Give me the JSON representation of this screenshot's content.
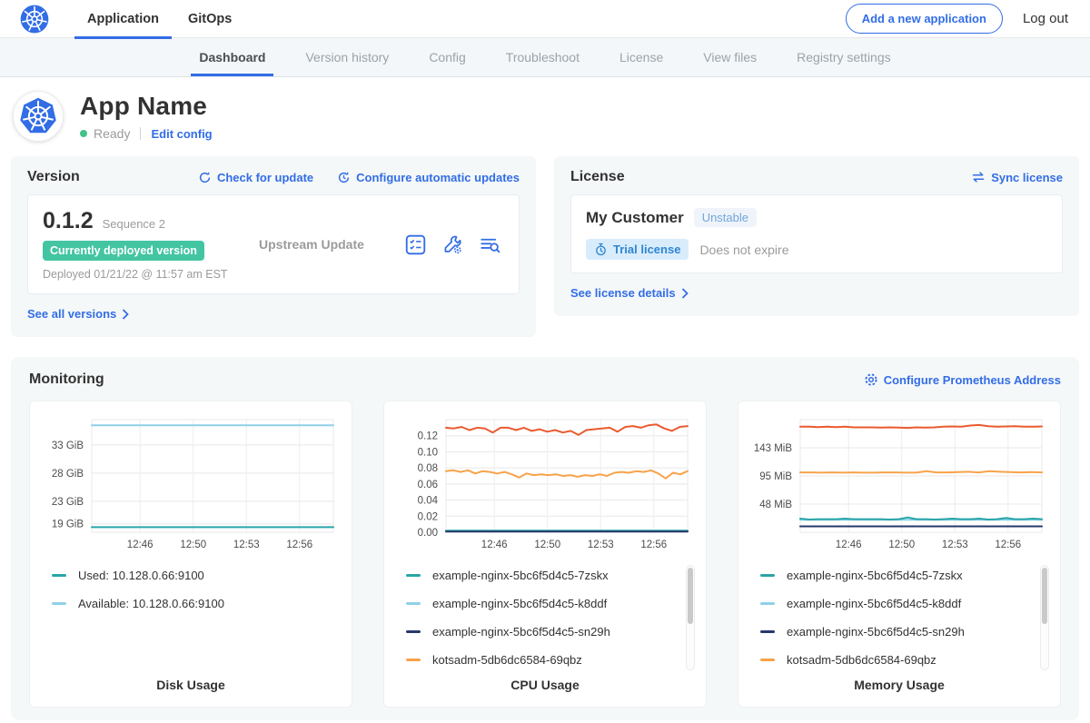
{
  "topnav": {
    "tabs": [
      {
        "label": "Application",
        "active": true
      },
      {
        "label": "GitOps",
        "active": false
      }
    ],
    "add_app_button": "Add a new application",
    "logout": "Log out"
  },
  "subnav": {
    "tabs": [
      {
        "label": "Dashboard",
        "active": true
      },
      {
        "label": "Version history",
        "active": false
      },
      {
        "label": "Config",
        "active": false
      },
      {
        "label": "Troubleshoot",
        "active": false
      },
      {
        "label": "License",
        "active": false
      },
      {
        "label": "View files",
        "active": false
      },
      {
        "label": "Registry settings",
        "active": false
      }
    ]
  },
  "app_header": {
    "name": "App Name",
    "status": "Ready",
    "edit_config": "Edit config"
  },
  "version_card": {
    "title": "Version",
    "check_for_update": "Check for update",
    "configure_auto_updates": "Configure automatic updates",
    "version": "0.1.2",
    "sequence": "Sequence 2",
    "deployed_badge": "Currently deployed version",
    "deployed_at": "Deployed 01/21/22 @ 11:57 am EST",
    "upstream": "Upstream Update",
    "see_all_versions": "See all versions"
  },
  "license_card": {
    "title": "License",
    "sync_license": "Sync license",
    "customer": "My Customer",
    "channel_badge": "Unstable",
    "type_badge": "Trial license",
    "expiry": "Does not expire",
    "see_details": "See license details"
  },
  "monitoring": {
    "title": "Monitoring",
    "configure_prometheus": "Configure Prometheus Address"
  },
  "icons": {
    "kubernetes-logo": "k8s-helm-wheel",
    "check-update-icon": "circular-arrow",
    "auto-update-icon": "clock-circular-arrow",
    "preflight-icon": "checklist",
    "config-icon": "wrench-gear",
    "logs-icon": "lines-magnifier",
    "chevron-right-icon": "›",
    "sync-icon": "swap-arrows",
    "stopwatch-icon": "stopwatch",
    "gear-icon": "gear",
    "status-dot": "●"
  },
  "colors": {
    "accent_blue": "#326de6",
    "green_badge": "#44c5a2",
    "status_green": "#44c08b",
    "teal_series": "#29a5a8",
    "lightblue_series": "#8fd0e8",
    "navy_series": "#27386b",
    "orange_series": "#f7a24a",
    "redorange_series": "#ea5b30"
  },
  "chart_data": [
    {
      "type": "line",
      "title": "Disk Usage",
      "x_ticks": [
        "12:46",
        "12:50",
        "12:53",
        "12:56"
      ],
      "x_tick_pos": [
        0.2,
        0.42,
        0.64,
        0.86
      ],
      "ylim": [
        17.5,
        37.5
      ],
      "y_ticks": [
        {
          "label": "33 GiB",
          "value": 33
        },
        {
          "label": "28 GiB",
          "value": 28
        },
        {
          "label": "23 GiB",
          "value": 23
        },
        {
          "label": "19 GiB",
          "value": 19
        }
      ],
      "legend": [
        {
          "label": "Used: 10.128.0.66:9100",
          "color": "#29a5a8"
        },
        {
          "label": "Available: 10.128.0.66:9100",
          "color": "#8fd0e8"
        }
      ],
      "series": [
        {
          "name": "Used: 10.128.0.66:9100",
          "color": "#29a5a8",
          "values": [
            18.4,
            18.4
          ]
        },
        {
          "name": "Available: 10.128.0.66:9100",
          "color": "#8fd0e8",
          "values": [
            36.5,
            36.5
          ]
        }
      ]
    },
    {
      "type": "line",
      "title": "CPU Usage",
      "x_ticks": [
        "12:46",
        "12:50",
        "12:53",
        "12:56"
      ],
      "x_tick_pos": [
        0.2,
        0.42,
        0.64,
        0.86
      ],
      "ylim": [
        0,
        0.14
      ],
      "y_ticks": [
        {
          "label": "0.12",
          "value": 0.12
        },
        {
          "label": "0.10",
          "value": 0.1
        },
        {
          "label": "0.08",
          "value": 0.08
        },
        {
          "label": "0.06",
          "value": 0.06
        },
        {
          "label": "0.04",
          "value": 0.04
        },
        {
          "label": "0.02",
          "value": 0.02
        },
        {
          "label": "0.00",
          "value": 0.0
        }
      ],
      "legend": [
        {
          "label": "example-nginx-5bc6f5d4c5-7zskx",
          "color": "#29a5a8"
        },
        {
          "label": "example-nginx-5bc6f5d4c5-k8ddf",
          "color": "#8fd0e8"
        },
        {
          "label": "example-nginx-5bc6f5d4c5-sn29h",
          "color": "#27386b"
        },
        {
          "label": "kotsadm-5db6dc6584-69qbz",
          "color": "#f7a24a"
        }
      ],
      "series": [
        {
          "name": "example-nginx-5bc6f5d4c5-k8ddf",
          "color": "#8fd0e8",
          "values": [
            0.0012,
            0.0012
          ]
        },
        {
          "name": "example-nginx-5bc6f5d4c5-7zskx",
          "color": "#29a5a8",
          "values": [
            0.002,
            0.002
          ]
        },
        {
          "name": "example-nginx-5bc6f5d4c5-sn29h",
          "color": "#27386b",
          "values": [
            0.0008,
            0.0008
          ]
        },
        {
          "name": "kotsadm-5db6dc6584-69qbz",
          "color": "#f7a24a",
          "values": [
            0.076,
            0.077,
            0.075,
            0.077,
            0.073,
            0.076,
            0.075,
            0.073,
            0.075,
            0.072,
            0.068,
            0.073,
            0.071,
            0.072,
            0.071,
            0.072,
            0.07,
            0.071,
            0.069,
            0.071,
            0.07,
            0.072,
            0.07,
            0.074,
            0.075,
            0.074,
            0.076,
            0.075,
            0.077,
            0.073,
            0.067,
            0.074,
            0.072,
            0.076
          ]
        },
        {
          "name": "",
          "color": "#ea5b30",
          "values": [
            0.13,
            0.129,
            0.131,
            0.127,
            0.13,
            0.129,
            0.124,
            0.13,
            0.13,
            0.127,
            0.13,
            0.126,
            0.128,
            0.125,
            0.127,
            0.124,
            0.126,
            0.121,
            0.127,
            0.128,
            0.129,
            0.13,
            0.125,
            0.131,
            0.132,
            0.13,
            0.133,
            0.134,
            0.129,
            0.126,
            0.131,
            0.132
          ]
        }
      ]
    },
    {
      "type": "line",
      "title": "Memory Usage",
      "x_ticks": [
        "12:46",
        "12:50",
        "12:53",
        "12:56"
      ],
      "x_tick_pos": [
        0.2,
        0.42,
        0.64,
        0.86
      ],
      "ylim": [
        0,
        190
      ],
      "y_ticks": [
        {
          "label": "143 MiB",
          "value": 142.5
        },
        {
          "label": "95 MiB",
          "value": 95
        },
        {
          "label": "48 MiB",
          "value": 47.5
        }
      ],
      "legend": [
        {
          "label": "example-nginx-5bc6f5d4c5-7zskx",
          "color": "#29a5a8"
        },
        {
          "label": "example-nginx-5bc6f5d4c5-k8ddf",
          "color": "#8fd0e8"
        },
        {
          "label": "example-nginx-5bc6f5d4c5-sn29h",
          "color": "#27386b"
        },
        {
          "label": "kotsadm-5db6dc6584-69qbz",
          "color": "#f7a24a"
        }
      ],
      "series": [
        {
          "name": "example-nginx-5bc6f5d4c5-sn29h",
          "color": "#27386b",
          "values": [
            10,
            10
          ]
        },
        {
          "name": "example-nginx-5bc6f5d4c5-k8ddf",
          "color": "#8fd0e8",
          "values": [
            21,
            21
          ]
        },
        {
          "name": "example-nginx-5bc6f5d4c5-7zskx",
          "color": "#29a5a8",
          "values": [
            23,
            21.5,
            22,
            22,
            22,
            23,
            22,
            22,
            22,
            22,
            21.5,
            22,
            25,
            22,
            22,
            21.5,
            22,
            23,
            22,
            22,
            23,
            21.5,
            22,
            24,
            22,
            22,
            23,
            22
          ]
        },
        {
          "name": "kotsadm-5db6dc6584-69qbz",
          "color": "#f7a24a",
          "values": [
            101,
            101,
            100.5,
            101,
            100.5,
            101,
            100.5,
            100.5,
            101,
            101,
            100.5,
            100.5,
            103,
            101,
            101,
            101.5,
            102,
            101,
            103,
            102,
            101.5,
            101,
            101.5,
            101
          ]
        },
        {
          "name": "",
          "color": "#ea5b30",
          "values": [
            178,
            178,
            177.5,
            178,
            177.5,
            178,
            177,
            177,
            177,
            176.5,
            177,
            176.5,
            176,
            177,
            176.5,
            177,
            178,
            178.5,
            178,
            180,
            181,
            179,
            178,
            178.5,
            179,
            178,
            178,
            178.5
          ]
        }
      ]
    }
  ]
}
